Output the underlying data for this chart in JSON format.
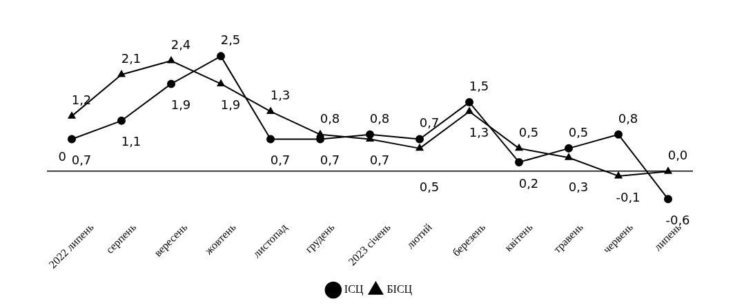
{
  "chart_data": {
    "type": "line",
    "categories": [
      "2022 липень",
      "серпень",
      "вересень",
      "жовтень",
      "листопад",
      "грудень",
      "2023 січень",
      "лютий",
      "березень",
      "квітень",
      "травень",
      "червень",
      "липень"
    ],
    "series": [
      {
        "name": "ІСЦ",
        "color": "#000000",
        "marker": "circle",
        "values": [
          0.7,
          1.1,
          1.9,
          2.5,
          0.7,
          0.7,
          0.8,
          0.7,
          1.5,
          0.2,
          0.5,
          0.8,
          -0.6
        ],
        "value_labels": [
          "0,7",
          "1,1",
          "1,9",
          "2,5",
          "0,7",
          "0,7",
          "0,8",
          "0,7",
          "1,5",
          "0,2",
          "0,5",
          "0,8",
          "-0,6"
        ]
      },
      {
        "name": "БІСЦ",
        "color": "#000000",
        "marker": "triangle",
        "values": [
          1.2,
          2.1,
          2.4,
          1.9,
          1.3,
          0.8,
          0.7,
          0.5,
          1.3,
          0.5,
          0.3,
          -0.1,
          0.0
        ],
        "value_labels": [
          "1,2",
          "2,1",
          "2,4",
          "1,9",
          "1,3",
          "0,8",
          "0,7",
          "0,5",
          "1,3",
          "0,5",
          "0,3",
          "-0,1",
          "0,0"
        ]
      }
    ],
    "grid": false,
    "legend": "bottom",
    "line_style": "solid",
    "annotations": [
      "0"
    ]
  }
}
